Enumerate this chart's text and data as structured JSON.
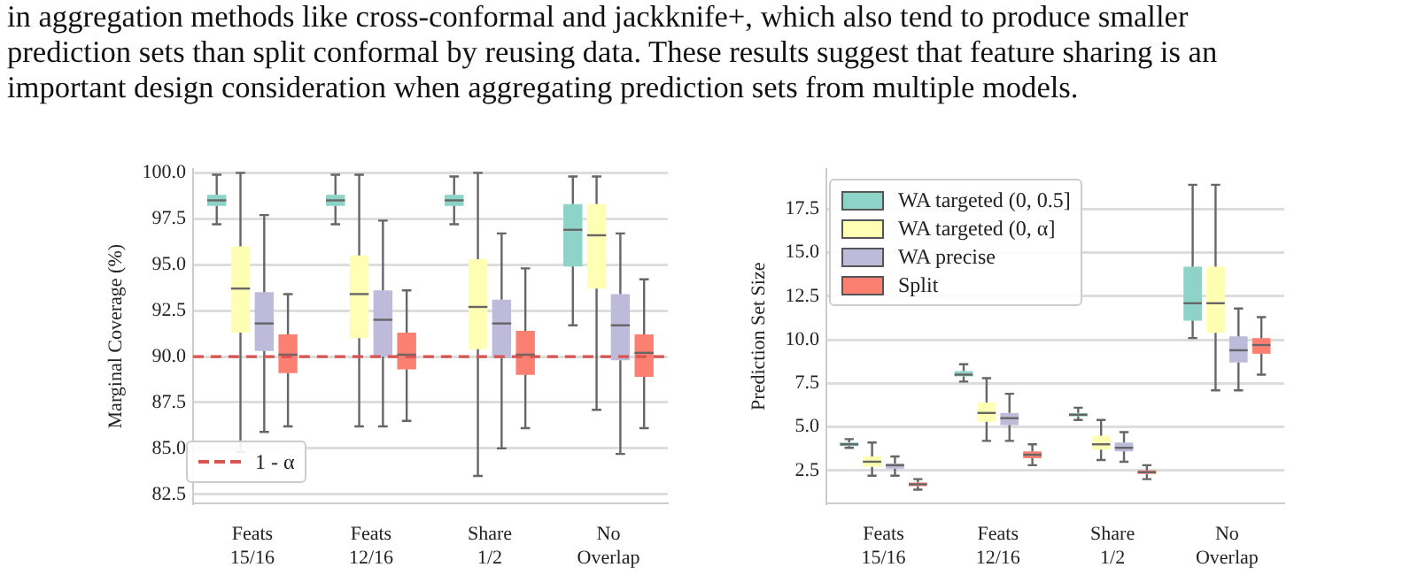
{
  "chart_data": [
    {
      "type": "other",
      "annotations": [
        "in aggregation methods like cross-conformal and jackknife+, which also tend to produce smaller",
        "prediction sets than split conformal by reusing data. These results suggest that feature sharing is an",
        "important design consideration when aggregating prediction sets from multiple models."
      ]
    },
    {
      "type": "box",
      "ylabel": "Marginal Coverage (%)",
      "categories": [
        "Feats\n15/16",
        "Feats\n12/16",
        "Share\n1/2",
        "No\nOverlap"
      ],
      "ylim": [
        82,
        100.2
      ],
      "yticks": [
        82.5,
        {
          "value": 85,
          "label": "85.0"
        },
        87.5,
        {
          "value": 90,
          "label": "90.0"
        },
        92.5,
        {
          "value": 95,
          "label": "95.0"
        },
        97.5,
        {
          "value": 100,
          "label": "100.0"
        }
      ],
      "grid": "y",
      "legend": "bottom left",
      "ref_lines": [
        {
          "axis": "y",
          "value": 90,
          "label": "1 - α",
          "color": "#d9534f",
          "line_style": "dashed"
        }
      ],
      "series": [
        {
          "color": "#8dd3c7",
          "boxes": [
            {
              "low": 97.2,
              "q1": 98.2,
              "median": 98.5,
              "q3": 98.8,
              "high": 99.9
            },
            {
              "low": 97.2,
              "q1": 98.2,
              "median": 98.5,
              "q3": 98.8,
              "high": 99.9
            },
            {
              "low": 97.2,
              "q1": 98.2,
              "median": 98.5,
              "q3": 98.8,
              "high": 99.8
            },
            {
              "low": 91.7,
              "q1": 94.9,
              "median": 96.9,
              "q3": 98.3,
              "high": 99.8
            }
          ]
        },
        {
          "color": "#ffffb3",
          "boxes": [
            {
              "low": 84.8,
              "q1": 91.3,
              "median": 93.7,
              "q3": 96.0,
              "high": 100.0
            },
            {
              "low": 86.2,
              "q1": 91.0,
              "median": 93.4,
              "q3": 95.5,
              "high": 99.9
            },
            {
              "low": 83.5,
              "q1": 90.4,
              "median": 92.7,
              "q3": 95.3,
              "high": 100.0
            },
            {
              "low": 87.1,
              "q1": 93.7,
              "median": 96.6,
              "q3": 98.3,
              "high": 99.8
            }
          ]
        },
        {
          "color": "#bebada",
          "boxes": [
            {
              "low": 85.9,
              "q1": 90.3,
              "median": 91.8,
              "q3": 93.5,
              "high": 97.7
            },
            {
              "low": 86.2,
              "q1": 90.0,
              "median": 92.0,
              "q3": 93.6,
              "high": 97.4
            },
            {
              "low": 85.0,
              "q1": 89.9,
              "median": 91.8,
              "q3": 93.1,
              "high": 96.7
            },
            {
              "low": 84.7,
              "q1": 89.8,
              "median": 91.7,
              "q3": 93.4,
              "high": 96.7
            }
          ]
        },
        {
          "color": "#fb8072",
          "boxes": [
            {
              "low": 86.2,
              "q1": 89.1,
              "median": 90.1,
              "q3": 91.2,
              "high": 93.4
            },
            {
              "low": 86.5,
              "q1": 89.3,
              "median": 90.1,
              "q3": 91.3,
              "high": 93.6
            },
            {
              "low": 86.1,
              "q1": 89.0,
              "median": 90.1,
              "q3": 91.4,
              "high": 94.8
            },
            {
              "low": 86.1,
              "q1": 88.9,
              "median": 90.2,
              "q3": 91.2,
              "high": 94.2
            }
          ]
        }
      ]
    },
    {
      "type": "box",
      "ylabel": "Prediction Set Size",
      "categories": [
        "Feats\n15/16",
        "Feats\n12/16",
        "Share\n1/2",
        "No\nOverlap"
      ],
      "ylim": [
        0.6,
        19.8
      ],
      "yticks": [
        2.5,
        {
          "value": 5,
          "label": "5.0"
        },
        7.5,
        {
          "value": 10,
          "label": "10.0"
        },
        12.5,
        {
          "value": 15,
          "label": "15.0"
        },
        17.5
      ],
      "grid": "y",
      "legend": "top left",
      "series": [
        {
          "name": "WA targeted (0, 0.5]",
          "color": "#8dd3c7",
          "boxes": [
            {
              "low": 3.8,
              "q1": 3.9,
              "median": 4.0,
              "q3": 4.1,
              "high": 4.3
            },
            {
              "low": 7.6,
              "q1": 7.9,
              "median": 8.0,
              "q3": 8.2,
              "high": 8.6
            },
            {
              "low": 5.4,
              "q1": 5.6,
              "median": 5.7,
              "q3": 5.8,
              "high": 6.1
            },
            {
              "low": 10.1,
              "q1": 11.1,
              "median": 12.1,
              "q3": 14.2,
              "high": 18.9
            }
          ]
        },
        {
          "name": "WA targeted (0, α]",
          "color": "#ffffb3",
          "boxes": [
            {
              "low": 2.2,
              "q1": 2.7,
              "median": 3.0,
              "q3": 3.3,
              "high": 4.1
            },
            {
              "low": 4.2,
              "q1": 5.3,
              "median": 5.8,
              "q3": 6.4,
              "high": 7.8
            },
            {
              "low": 3.1,
              "q1": 3.7,
              "median": 4.0,
              "q3": 4.5,
              "high": 5.4
            },
            {
              "low": 7.1,
              "q1": 10.4,
              "median": 12.1,
              "q3": 14.2,
              "high": 18.9
            }
          ]
        },
        {
          "name": "WA precise",
          "color": "#bebada",
          "boxes": [
            {
              "low": 2.2,
              "q1": 2.6,
              "median": 2.8,
              "q3": 2.9,
              "high": 3.3
            },
            {
              "low": 4.2,
              "q1": 5.1,
              "median": 5.5,
              "q3": 5.8,
              "high": 6.9
            },
            {
              "low": 3.0,
              "q1": 3.6,
              "median": 3.8,
              "q3": 4.1,
              "high": 4.7
            },
            {
              "low": 7.1,
              "q1": 8.7,
              "median": 9.4,
              "q3": 10.2,
              "high": 11.8
            }
          ]
        },
        {
          "name": "Split",
          "color": "#fb8072",
          "boxes": [
            {
              "low": 1.4,
              "q1": 1.6,
              "median": 1.7,
              "q3": 1.8,
              "high": 2.0
            },
            {
              "low": 2.8,
              "q1": 3.2,
              "median": 3.4,
              "q3": 3.6,
              "high": 4.0
            },
            {
              "low": 2.0,
              "q1": 2.3,
              "median": 2.4,
              "q3": 2.5,
              "high": 2.8
            },
            {
              "low": 8.0,
              "q1": 9.2,
              "median": 9.7,
              "q3": 10.1,
              "high": 11.3
            }
          ]
        }
      ]
    }
  ]
}
